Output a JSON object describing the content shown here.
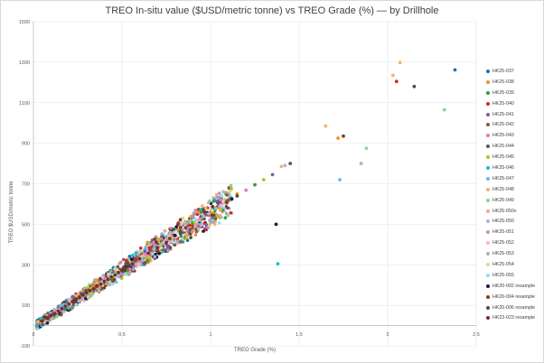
{
  "chart_data": {
    "type": "scatter",
    "title": "TREO In-situ value ($USD/metric tonne) vs TREO Grade (%) — by Drillhole",
    "xlabel": "TREO Grade  (%)",
    "ylabel": "TREO $USD/metric tonne",
    "xlim": [
      0,
      2.5
    ],
    "ylim": [
      -100,
      1500
    ],
    "x_ticks": [
      0,
      0.5,
      1,
      1.5,
      2,
      2.5
    ],
    "x_tick_labels": [
      "0",
      "0.5",
      "1",
      "1.5",
      "2",
      "2.5"
    ],
    "y_ticks": [
      -100,
      100,
      300,
      500,
      700,
      900,
      1100,
      1300,
      1500
    ],
    "y_tick_labels": [
      "-100",
      "100",
      "300",
      "500",
      "700",
      "900",
      "1100",
      "1300",
      "1500"
    ],
    "grid": true,
    "legend_position": "right",
    "approx_slope_usd_per_pct": 560,
    "series": [
      {
        "name": "HK25-037",
        "color": "#1f6fb4",
        "points": [
          [
            0.12,
            62
          ],
          [
            0.28,
            158
          ],
          [
            0.45,
            258
          ],
          [
            0.7,
            395
          ],
          [
            1.02,
            575
          ],
          [
            2.38,
            1262
          ]
        ]
      },
      {
        "name": "HK25-038",
        "color": "#f28e2b",
        "points": [
          [
            0.1,
            52
          ],
          [
            0.33,
            188
          ],
          [
            0.55,
            305
          ],
          [
            0.82,
            470
          ],
          [
            1.15,
            650
          ],
          [
            1.72,
            925
          ]
        ]
      },
      {
        "name": "HK25-039",
        "color": "#3a9a3a",
        "points": [
          [
            0.15,
            80
          ],
          [
            0.38,
            210
          ],
          [
            0.6,
            340
          ],
          [
            0.9,
            505
          ],
          [
            1.25,
            695
          ]
        ]
      },
      {
        "name": "HK25-040",
        "color": "#d62728",
        "points": [
          [
            0.13,
            70
          ],
          [
            0.36,
            198
          ],
          [
            0.58,
            325
          ],
          [
            0.88,
            495
          ],
          [
            2.05,
            1205
          ]
        ]
      },
      {
        "name": "HK25-041",
        "color": "#7b5ea7",
        "points": [
          [
            0.18,
            95
          ],
          [
            0.42,
            232
          ],
          [
            0.67,
            372
          ],
          [
            0.97,
            545
          ],
          [
            1.35,
            745
          ]
        ]
      },
      {
        "name": "HK25-042",
        "color": "#8c564b",
        "points": [
          [
            0.09,
            45
          ],
          [
            0.31,
            175
          ],
          [
            0.52,
            290
          ],
          [
            0.79,
            445
          ],
          [
            1.1,
            620
          ]
        ]
      },
      {
        "name": "HK25-043",
        "color": "#e377c2",
        "points": [
          [
            0.16,
            88
          ],
          [
            0.4,
            222
          ],
          [
            0.63,
            352
          ],
          [
            0.94,
            528
          ],
          [
            1.2,
            668
          ]
        ]
      },
      {
        "name": "HK25-044",
        "color": "#595959",
        "points": [
          [
            0.11,
            58
          ],
          [
            0.35,
            192
          ],
          [
            0.57,
            318
          ],
          [
            0.86,
            482
          ],
          [
            1.45,
            800
          ]
        ]
      },
      {
        "name": "HK25-045",
        "color": "#bcbd22",
        "points": [
          [
            0.14,
            75
          ],
          [
            0.37,
            205
          ],
          [
            0.6,
            335
          ],
          [
            0.91,
            510
          ],
          [
            1.3,
            720
          ]
        ]
      },
      {
        "name": "HK25-046",
        "color": "#17becf",
        "points": [
          [
            0.17,
            92
          ],
          [
            0.44,
            245
          ],
          [
            0.69,
            382
          ],
          [
            1.38,
            305
          ]
        ]
      },
      {
        "name": "HK25-047",
        "color": "#7fb0dd",
        "points": [
          [
            0.2,
            108
          ],
          [
            0.47,
            262
          ],
          [
            0.73,
            408
          ],
          [
            1.05,
            588
          ],
          [
            1.73,
            720
          ]
        ]
      },
      {
        "name": "HK25-048",
        "color": "#f6b26b",
        "points": [
          [
            0.22,
            122
          ],
          [
            0.5,
            278
          ],
          [
            0.78,
            435
          ],
          [
            1.08,
            605
          ],
          [
            1.4,
            785
          ],
          [
            1.65,
            985
          ],
          [
            2.03,
            1235
          ],
          [
            2.07,
            1298
          ]
        ]
      },
      {
        "name": "HK25-049",
        "color": "#8fd18f",
        "points": [
          [
            0.19,
            102
          ],
          [
            0.46,
            255
          ],
          [
            0.72,
            400
          ],
          [
            1.03,
            578
          ],
          [
            1.88,
            875
          ],
          [
            2.32,
            1065
          ]
        ]
      },
      {
        "name": "HK25-050x",
        "color": "#f4a3a3",
        "points": [
          [
            0.13,
            68
          ],
          [
            0.39,
            215
          ],
          [
            0.62,
            345
          ],
          [
            0.93,
            520
          ]
        ]
      },
      {
        "name": "HK25-050",
        "color": "#c4a8dc",
        "points": [
          [
            0.15,
            82
          ],
          [
            0.41,
            228
          ],
          [
            0.65,
            362
          ],
          [
            0.96,
            538
          ],
          [
            1.42,
            790
          ]
        ]
      },
      {
        "name": "HK25-051",
        "color": "#c49c94",
        "points": [
          [
            0.12,
            64
          ],
          [
            0.34,
            185
          ],
          [
            0.56,
            310
          ],
          [
            0.84,
            472
          ]
        ]
      },
      {
        "name": "HK25-052",
        "color": "#f7b6d2",
        "points": [
          [
            0.21,
            115
          ],
          [
            0.48,
            268
          ],
          [
            0.74,
            412
          ],
          [
            1.06,
            592
          ]
        ]
      },
      {
        "name": "HK25-053",
        "color": "#b3b3b3",
        "points": [
          [
            0.16,
            85
          ],
          [
            0.43,
            238
          ],
          [
            0.68,
            378
          ],
          [
            0.99,
            552
          ],
          [
            1.85,
            800
          ]
        ]
      },
      {
        "name": "HK25-054",
        "color": "#dbdb8d",
        "points": [
          [
            0.18,
            98
          ],
          [
            0.45,
            250
          ],
          [
            0.7,
            390
          ],
          [
            1.01,
            568
          ]
        ]
      },
      {
        "name": "HK25-055",
        "color": "#9edae5",
        "points": [
          [
            0.14,
            76
          ],
          [
            0.38,
            212
          ],
          [
            0.61,
            340
          ],
          [
            0.92,
            515
          ]
        ]
      },
      {
        "name": "HK20-002 resample",
        "color": "#1a1a4e",
        "points": [
          [
            0.24,
            130
          ],
          [
            0.52,
            290
          ],
          [
            0.8,
            445
          ],
          [
            1.12,
            625
          ],
          [
            1.37,
            500
          ]
        ]
      },
      {
        "name": "HK20-004 resample",
        "color": "#7a3e1c",
        "points": [
          [
            0.23,
            125
          ],
          [
            0.51,
            285
          ],
          [
            0.77,
            430
          ],
          [
            1.09,
            610
          ],
          [
            1.75,
            935
          ]
        ]
      },
      {
        "name": "HK20-006 resample",
        "color": "#4d4d4d",
        "points": [
          [
            0.26,
            140
          ],
          [
            0.54,
            300
          ],
          [
            0.83,
            465
          ],
          [
            1.15,
            640
          ],
          [
            2.15,
            1180
          ]
        ]
      },
      {
        "name": "HK23-023 resample",
        "color": "#7b2d26",
        "points": [
          [
            0.05,
            22
          ],
          [
            0.08,
            38
          ],
          [
            0.1,
            50
          ],
          [
            0.12,
            60
          ],
          [
            0.14,
            72
          ],
          [
            0.16,
            84
          ],
          [
            0.18,
            96
          ],
          [
            0.2,
            106
          ],
          [
            0.22,
            118
          ],
          [
            0.24,
            128
          ],
          [
            0.26,
            138
          ],
          [
            0.28,
            150
          ],
          [
            0.3,
            162
          ],
          [
            0.32,
            172
          ],
          [
            0.34,
            182
          ],
          [
            0.36,
            195
          ],
          [
            0.38,
            205
          ],
          [
            0.4,
            218
          ],
          [
            0.42,
            228
          ],
          [
            0.44,
            240
          ],
          [
            0.46,
            250
          ],
          [
            0.48,
            262
          ],
          [
            0.5,
            275
          ],
          [
            0.53,
            290
          ],
          [
            0.56,
            305
          ],
          [
            0.6,
            330
          ],
          [
            0.65,
            358
          ],
          [
            0.7,
            385
          ],
          [
            0.75,
            410
          ]
        ]
      }
    ]
  }
}
